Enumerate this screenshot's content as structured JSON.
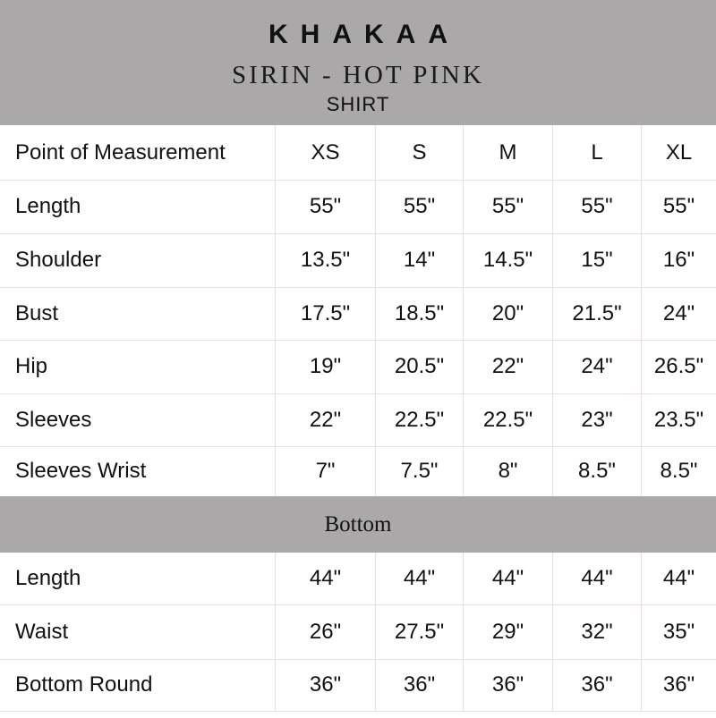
{
  "header": {
    "brand": "KHAKAA",
    "product": "SIRIN - HOT PINK",
    "category": "SHIRT"
  },
  "table_header": {
    "label": "Point of Measurement",
    "sizes": [
      "XS",
      "S",
      "M",
      "L",
      "XL"
    ]
  },
  "shirt_rows": [
    {
      "label": "Length",
      "values": [
        "55\"",
        "55\"",
        "55\"",
        "55\"",
        "55\""
      ]
    },
    {
      "label": "Shoulder",
      "values": [
        "13.5\"",
        "14\"",
        "14.5\"",
        "15\"",
        "16\""
      ]
    },
    {
      "label": "Bust",
      "values": [
        "17.5\"",
        "18.5\"",
        "20\"",
        "21.5\"",
        "24\""
      ]
    },
    {
      "label": "Hip",
      "values": [
        "19\"",
        "20.5\"",
        "22\"",
        "24\"",
        "26.5\""
      ]
    },
    {
      "label": "Sleeves",
      "values": [
        "22\"",
        "22.5\"",
        "22.5\"",
        "23\"",
        "23.5\""
      ]
    },
    {
      "label": "Sleeves Wrist",
      "values": [
        "7\"",
        "7.5\"",
        "8\"",
        "8.5\"",
        "8.5\""
      ]
    }
  ],
  "bottom_section": {
    "title": "Bottom"
  },
  "bottom_rows": [
    {
      "label": "Length",
      "values": [
        "44\"",
        "44\"",
        "44\"",
        "44\"",
        "44\""
      ]
    },
    {
      "label": "Waist",
      "values": [
        "26\"",
        "27.5\"",
        "29\"",
        "32\"",
        "35\""
      ]
    },
    {
      "label": "Bottom Round",
      "values": [
        "36\"",
        "36\"",
        "36\"",
        "36\"",
        "36\""
      ]
    }
  ],
  "colors": {
    "band": "#aba8a9",
    "grid": "#eadfe0"
  }
}
